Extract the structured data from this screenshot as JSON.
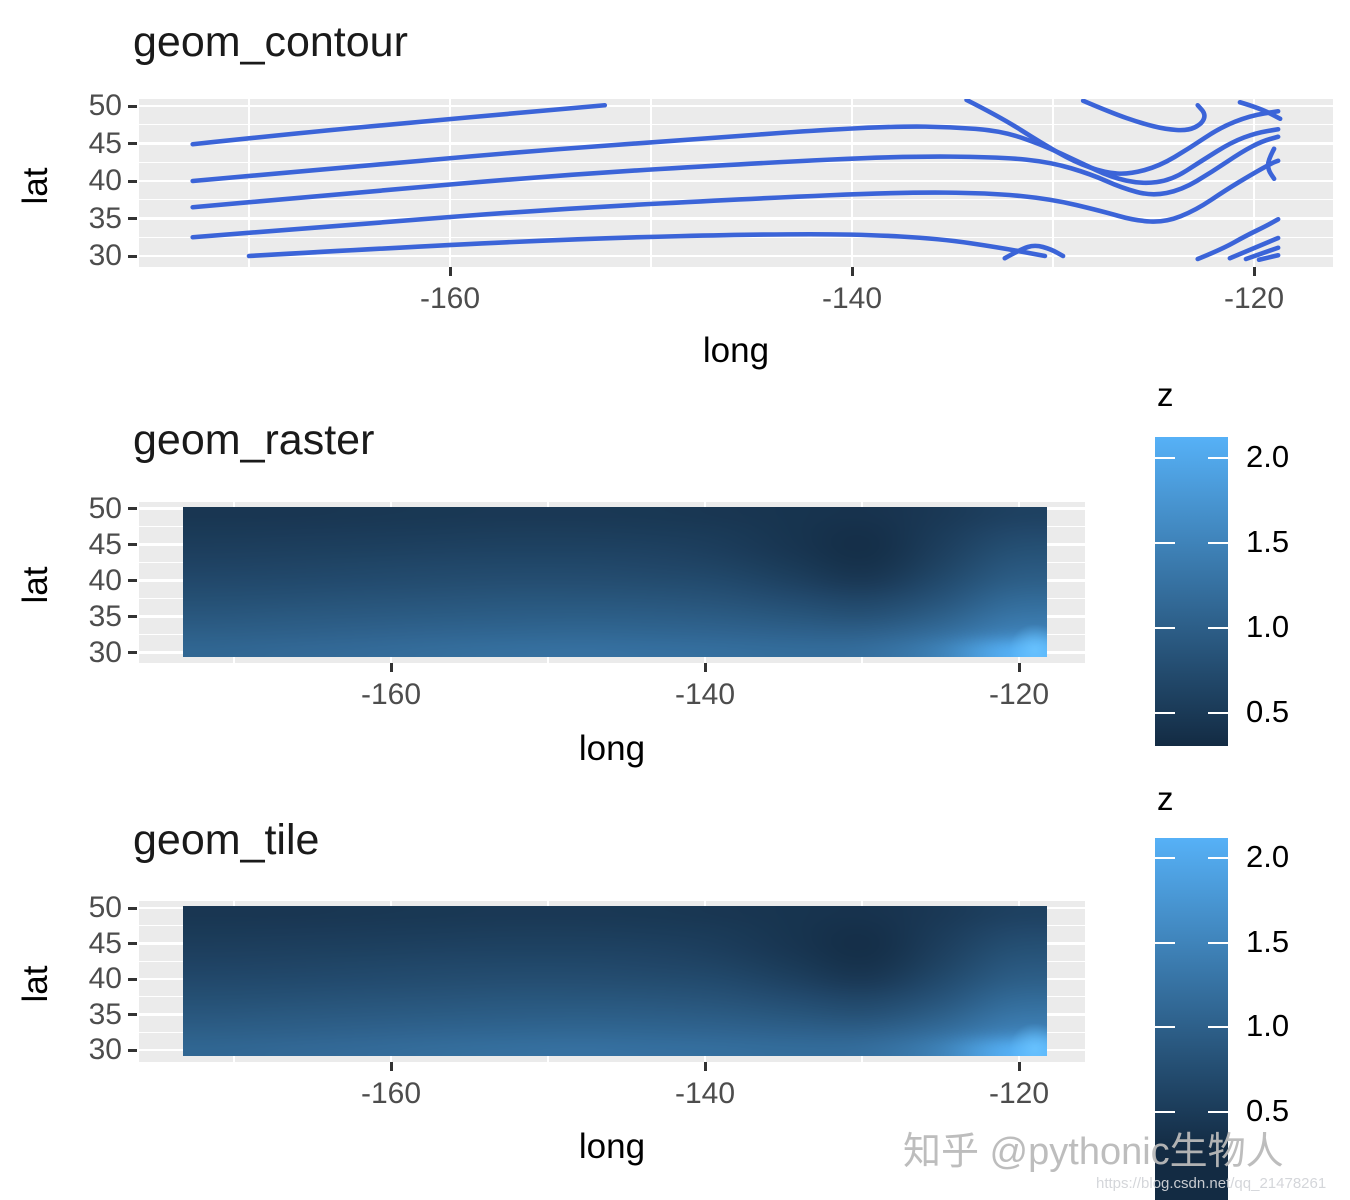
{
  "palette": {
    "panel_bg": "#EBEBEB",
    "gridline": "#FFFFFF",
    "tick_text": "#4D4D4D",
    "axis_text": "#000000",
    "contour_line": "#3B64D8",
    "gradient_low": "#132B43",
    "gradient_high": "#56B1F7"
  },
  "watermark": {
    "brand": "知乎 @pythonic生物人",
    "url": "https://blog.csdn.net/qq_21478261"
  },
  "chart_data": [
    {
      "type": "contour",
      "title": "geom_contour",
      "xlabel": "long",
      "ylabel": "lat",
      "x_ticks": [
        -160,
        -140,
        -120
      ],
      "x_minor": [
        -170,
        -150,
        -130
      ],
      "y_ticks": [
        50,
        45,
        40,
        35,
        30
      ],
      "y_minor": [
        47.5,
        42.5,
        37.5,
        32.5
      ],
      "x_range": [
        -175.9,
        -116.1
      ],
      "y_range": [
        28.6,
        50.9
      ],
      "grid": true,
      "legend_position": "none",
      "lines": [
        {
          "points": [
            [
              -172.8,
              44.9
            ],
            [
              -167.5,
              46.4
            ],
            [
              -161.5,
              47.9
            ],
            [
              -156.5,
              49.1
            ],
            [
              -152.3,
              50.1
            ]
          ]
        },
        {
          "points": [
            [
              -172.8,
              40.0
            ],
            [
              -165.5,
              41.7
            ],
            [
              -156.5,
              43.9
            ],
            [
              -147.6,
              45.6
            ],
            [
              -141.6,
              46.8
            ],
            [
              -137.6,
              47.3
            ],
            [
              -135.1,
              47.2
            ],
            [
              -132.6,
              46.7
            ],
            [
              -130.6,
              44.9
            ],
            [
              -128.6,
              42.4
            ],
            [
              -127.1,
              40.5
            ],
            [
              -125.6,
              39.6
            ],
            [
              -124.1,
              40.1
            ],
            [
              -122.6,
              42.7
            ],
            [
              -121.1,
              45.2
            ],
            [
              -119.9,
              46.4
            ],
            [
              -118.8,
              46.9
            ]
          ]
        },
        {
          "points": [
            [
              -172.8,
              36.5
            ],
            [
              -164.5,
              38.5
            ],
            [
              -154.5,
              40.8
            ],
            [
              -144.6,
              42.4
            ],
            [
              -137.6,
              43.3
            ],
            [
              -132.6,
              43.2
            ],
            [
              -130.1,
              42.5
            ],
            [
              -128.1,
              40.9
            ],
            [
              -126.6,
              39.1
            ],
            [
              -125.1,
              38.0
            ],
            [
              -123.6,
              38.8
            ],
            [
              -122.1,
              41.2
            ],
            [
              -120.6,
              43.9
            ],
            [
              -119.6,
              45.3
            ],
            [
              -118.8,
              45.9
            ]
          ]
        },
        {
          "points": [
            [
              -172.8,
              32.5
            ],
            [
              -164.5,
              34.3
            ],
            [
              -154.5,
              36.3
            ],
            [
              -144.6,
              37.7
            ],
            [
              -137.6,
              38.5
            ],
            [
              -133.1,
              38.4
            ],
            [
              -130.1,
              37.6
            ],
            [
              -127.6,
              36.0
            ],
            [
              -125.9,
              34.7
            ],
            [
              -124.4,
              34.5
            ],
            [
              -122.9,
              36.1
            ],
            [
              -121.4,
              38.8
            ],
            [
              -120.1,
              40.9
            ],
            [
              -119.1,
              42.4
            ],
            [
              -118.8,
              42.7
            ]
          ]
        },
        {
          "points": [
            [
              -170.0,
              30.0
            ],
            [
              -161.5,
              31.3
            ],
            [
              -152.5,
              32.4
            ],
            [
              -144.6,
              32.9
            ],
            [
              -139.6,
              32.9
            ],
            [
              -135.6,
              32.3
            ],
            [
              -132.6,
              31.1
            ],
            [
              -130.4,
              30.0
            ]
          ]
        },
        {
          "points": [
            [
              -132.4,
              29.7
            ],
            [
              -131.6,
              30.9
            ],
            [
              -130.9,
              31.5
            ],
            [
              -130.1,
              30.9
            ],
            [
              -129.5,
              30.0
            ]
          ]
        },
        {
          "points": [
            [
              -134.3,
              50.8
            ],
            [
              -132.6,
              48.5
            ],
            [
              -130.6,
              45.1
            ],
            [
              -128.9,
              42.5
            ],
            [
              -127.4,
              41.1
            ],
            [
              -126.2,
              40.9
            ],
            [
              -124.7,
              42.0
            ],
            [
              -123.2,
              44.4
            ],
            [
              -121.7,
              47.1
            ],
            [
              -120.2,
              48.7
            ],
            [
              -118.8,
              49.3
            ]
          ]
        },
        {
          "points": [
            [
              -128.5,
              50.7
            ],
            [
              -127.1,
              49.1
            ],
            [
              -125.6,
              47.7
            ],
            [
              -124.4,
              46.9
            ],
            [
              -123.3,
              46.7
            ],
            [
              -122.6,
              47.6
            ],
            [
              -122.4,
              48.9
            ],
            [
              -122.8,
              50.1
            ]
          ]
        },
        {
          "points": [
            [
              -120.7,
              50.5
            ],
            [
              -119.7,
              49.7
            ],
            [
              -118.7,
              48.3
            ]
          ]
        },
        {
          "points": [
            [
              -119.0,
              44.3
            ],
            [
              -119.3,
              42.8
            ],
            [
              -119.3,
              41.5
            ],
            [
              -119.0,
              40.3
            ]
          ]
        },
        {
          "points": [
            [
              -122.8,
              29.6
            ],
            [
              -121.6,
              30.9
            ],
            [
              -120.4,
              32.7
            ],
            [
              -119.4,
              34.0
            ],
            [
              -118.8,
              34.9
            ]
          ]
        },
        {
          "points": [
            [
              -121.2,
              29.7
            ],
            [
              -118.8,
              32.4
            ]
          ]
        },
        {
          "points": [
            [
              -120.4,
              29.6
            ],
            [
              -118.8,
              31.1
            ]
          ]
        },
        {
          "points": [
            [
              -119.75,
              29.5
            ],
            [
              -118.8,
              30.1
            ]
          ]
        }
      ]
    },
    {
      "type": "heatmap",
      "title": "geom_raster",
      "xlabel": "long",
      "ylabel": "lat",
      "x_ticks": [
        -160,
        -140,
        -120
      ],
      "x_minor": [
        -170,
        -150,
        -130
      ],
      "y_ticks": [
        50,
        45,
        40,
        35,
        30
      ],
      "y_minor": [
        47.5,
        42.5,
        37.5,
        32.5
      ],
      "x_range": [
        -176.1,
        -115.8
      ],
      "y_range": [
        28.5,
        50.9
      ],
      "grid": true,
      "legend_position": "right",
      "legend": {
        "title": "z",
        "ticks": [
          2.0,
          1.5,
          1.0,
          0.5
        ]
      },
      "scale": {
        "low": "#132B43",
        "high": "#56B1F7",
        "zmin": 0.3,
        "zmax": 2.12
      },
      "grid_data": {
        "longs": [
          -173,
          -168,
          -163,
          -158,
          -153,
          -148,
          -143,
          -138,
          -133,
          -128,
          -123,
          -118.5
        ],
        "lats": [
          50,
          47.5,
          45,
          42.5,
          40,
          37.5,
          35,
          32.5,
          30
        ],
        "z": [
          [
            0.45,
            0.45,
            0.46,
            0.47,
            0.48,
            0.48,
            0.47,
            0.45,
            0.42,
            0.4,
            0.48,
            0.6
          ],
          [
            0.5,
            0.51,
            0.52,
            0.53,
            0.54,
            0.54,
            0.53,
            0.5,
            0.42,
            0.36,
            0.52,
            0.7
          ],
          [
            0.56,
            0.57,
            0.58,
            0.6,
            0.61,
            0.61,
            0.6,
            0.55,
            0.44,
            0.34,
            0.56,
            0.8
          ],
          [
            0.63,
            0.64,
            0.66,
            0.68,
            0.69,
            0.69,
            0.67,
            0.62,
            0.5,
            0.38,
            0.62,
            0.9
          ],
          [
            0.71,
            0.72,
            0.74,
            0.76,
            0.78,
            0.78,
            0.76,
            0.72,
            0.6,
            0.48,
            0.72,
            1.0
          ],
          [
            0.8,
            0.82,
            0.84,
            0.86,
            0.88,
            0.88,
            0.87,
            0.83,
            0.74,
            0.65,
            0.85,
            1.15
          ],
          [
            0.9,
            0.92,
            0.94,
            0.96,
            0.98,
            0.99,
            0.98,
            0.95,
            0.88,
            0.82,
            1.0,
            1.3
          ],
          [
            1.0,
            1.02,
            1.05,
            1.08,
            1.1,
            1.11,
            1.1,
            1.08,
            1.04,
            1.02,
            1.2,
            1.5
          ],
          [
            1.1,
            1.13,
            1.16,
            1.19,
            1.22,
            1.24,
            1.23,
            1.21,
            1.18,
            1.2,
            1.45,
            2.1
          ]
        ]
      }
    },
    {
      "type": "heatmap",
      "title": "geom_tile",
      "xlabel": "long",
      "ylabel": "lat",
      "x_ticks": [
        -160,
        -140,
        -120
      ],
      "x_minor": [
        -170,
        -150,
        -130
      ],
      "y_ticks": [
        50,
        45,
        40,
        35,
        30
      ],
      "y_minor": [
        47.5,
        42.5,
        37.5,
        32.5
      ],
      "x_range": [
        -176.1,
        -115.8
      ],
      "y_range": [
        28.5,
        50.9
      ],
      "grid": true,
      "legend_position": "right",
      "legend": {
        "title": "z",
        "ticks": [
          2.0,
          1.5,
          1.0,
          0.5
        ]
      },
      "scale": {
        "low": "#132B43",
        "high": "#56B1F7",
        "zmin": 0.3,
        "zmax": 2.12
      },
      "grid_data": {
        "longs": [
          -173,
          -168,
          -163,
          -158,
          -153,
          -148,
          -143,
          -138,
          -133,
          -128,
          -123,
          -118.5
        ],
        "lats": [
          50,
          47.5,
          45,
          42.5,
          40,
          37.5,
          35,
          32.5,
          30
        ],
        "z": [
          [
            0.45,
            0.45,
            0.46,
            0.47,
            0.48,
            0.48,
            0.47,
            0.45,
            0.42,
            0.4,
            0.48,
            0.6
          ],
          [
            0.5,
            0.51,
            0.52,
            0.53,
            0.54,
            0.54,
            0.53,
            0.5,
            0.42,
            0.36,
            0.52,
            0.7
          ],
          [
            0.56,
            0.57,
            0.58,
            0.6,
            0.61,
            0.61,
            0.6,
            0.55,
            0.44,
            0.34,
            0.56,
            0.8
          ],
          [
            0.63,
            0.64,
            0.66,
            0.68,
            0.69,
            0.69,
            0.67,
            0.62,
            0.5,
            0.38,
            0.62,
            0.9
          ],
          [
            0.71,
            0.72,
            0.74,
            0.76,
            0.78,
            0.78,
            0.76,
            0.72,
            0.6,
            0.48,
            0.72,
            1.0
          ],
          [
            0.8,
            0.82,
            0.84,
            0.86,
            0.88,
            0.88,
            0.87,
            0.83,
            0.74,
            0.65,
            0.85,
            1.15
          ],
          [
            0.9,
            0.92,
            0.94,
            0.96,
            0.98,
            0.99,
            0.98,
            0.95,
            0.88,
            0.82,
            1.0,
            1.3
          ],
          [
            1.0,
            1.02,
            1.05,
            1.08,
            1.1,
            1.11,
            1.1,
            1.08,
            1.04,
            1.02,
            1.2,
            1.5
          ],
          [
            1.1,
            1.13,
            1.16,
            1.19,
            1.22,
            1.24,
            1.23,
            1.21,
            1.18,
            1.2,
            1.45,
            2.1
          ]
        ]
      }
    }
  ]
}
